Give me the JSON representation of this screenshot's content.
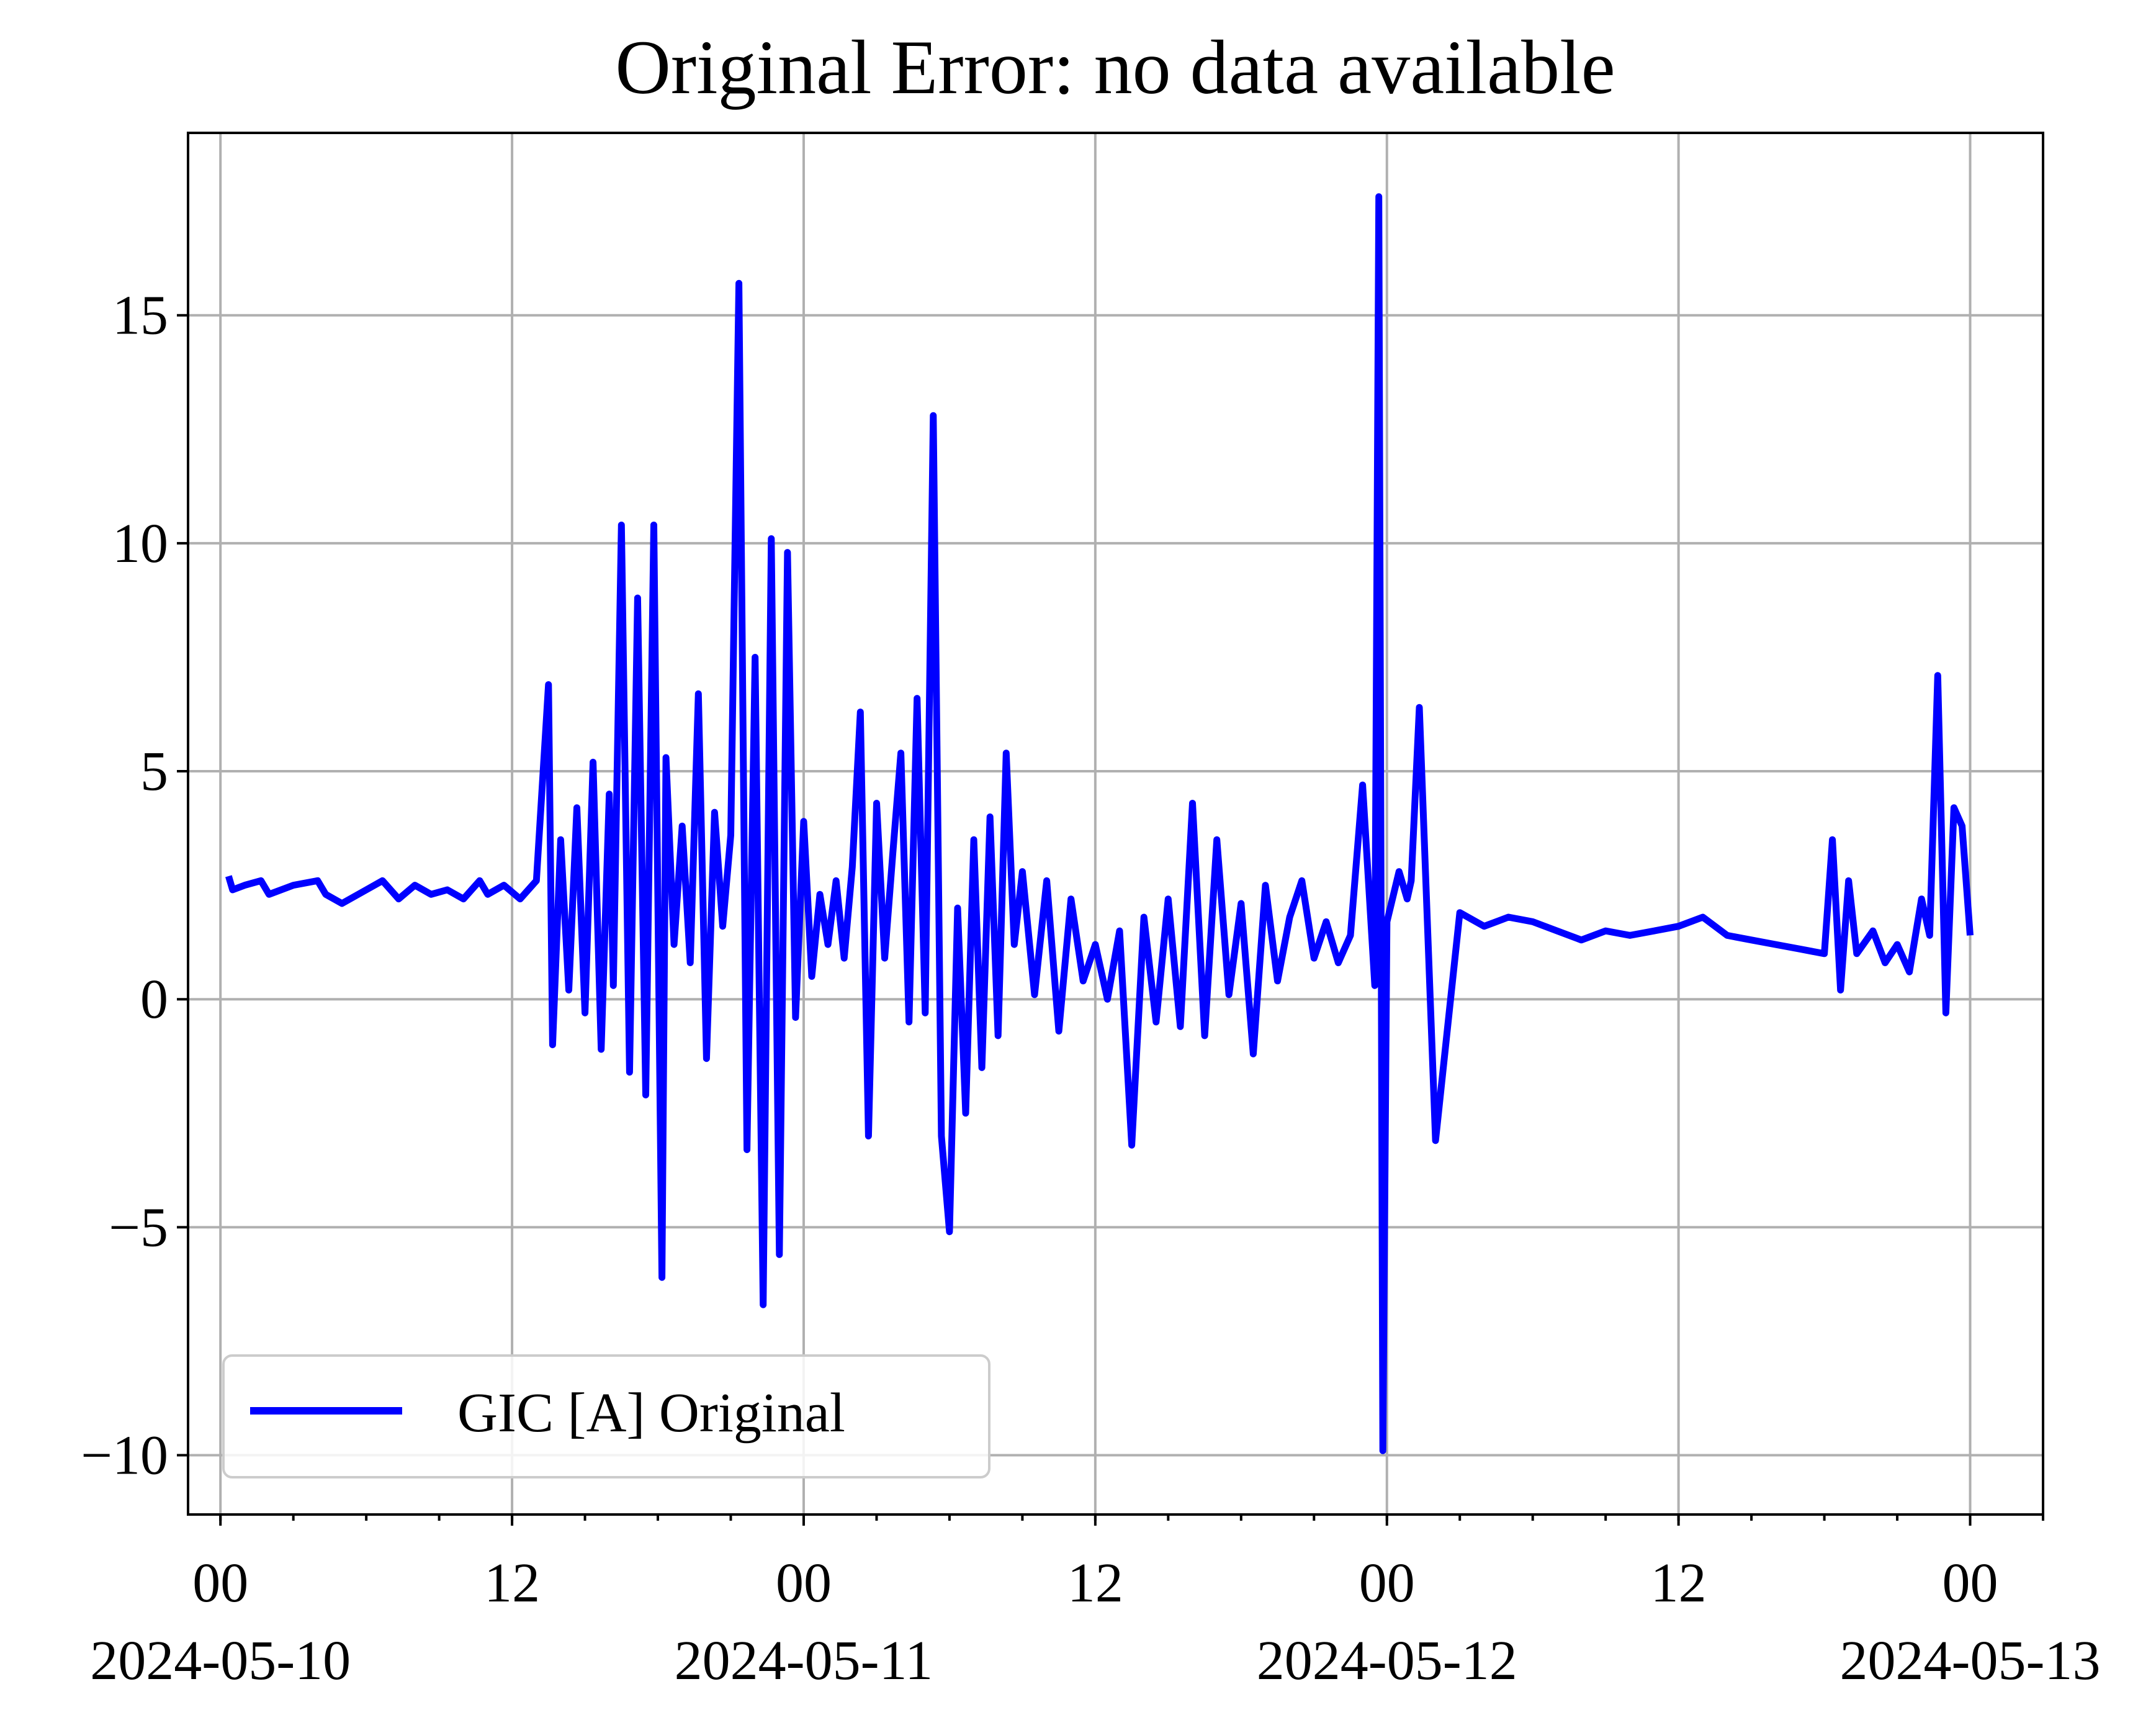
{
  "chart_data": {
    "type": "line",
    "title": "Original Error: no data available",
    "xlabel": "",
    "ylabel": "",
    "x_axis_type": "datetime",
    "xlim": [
      "2024-05-09 22:40",
      "2024-05-13 03:00"
    ],
    "ylim": [
      -11.3,
      19.0
    ],
    "grid": true,
    "legend_position": "lower left",
    "yticks": [
      -10,
      -5,
      0,
      5,
      10,
      15
    ],
    "ytick_labels": [
      "−10",
      "−5",
      "0",
      "5",
      "10",
      "15"
    ],
    "xticks": [
      "2024-05-10 00:00",
      "2024-05-10 12:00",
      "2024-05-11 00:00",
      "2024-05-11 12:00",
      "2024-05-12 00:00",
      "2024-05-12 12:00",
      "2024-05-13 00:00"
    ],
    "xtick_labels": [
      {
        "time": "00",
        "date": "2024-05-10"
      },
      {
        "time": "12",
        "date": ""
      },
      {
        "time": "00",
        "date": "2024-05-11"
      },
      {
        "time": "12",
        "date": ""
      },
      {
        "time": "00",
        "date": "2024-05-12"
      },
      {
        "time": "12",
        "date": ""
      },
      {
        "time": "00",
        "date": "2024-05-13"
      }
    ],
    "series": [
      {
        "name": "GIC [A] Original",
        "color": "#0000ff",
        "x": [
          "2024-05-10 00:20",
          "2024-05-10 00:30",
          "2024-05-10 01:00",
          "2024-05-10 01:40",
          "2024-05-10 02:00",
          "2024-05-10 03:00",
          "2024-05-10 04:00",
          "2024-05-10 04:20",
          "2024-05-10 05:00",
          "2024-05-10 06:00",
          "2024-05-10 06:40",
          "2024-05-10 07:20",
          "2024-05-10 08:00",
          "2024-05-10 08:40",
          "2024-05-10 09:20",
          "2024-05-10 10:00",
          "2024-05-10 10:40",
          "2024-05-10 11:00",
          "2024-05-10 11:40",
          "2024-05-10 12:20",
          "2024-05-10 13:00",
          "2024-05-10 13:30",
          "2024-05-10 13:40",
          "2024-05-10 14:00",
          "2024-05-10 14:20",
          "2024-05-10 14:40",
          "2024-05-10 15:00",
          "2024-05-10 15:20",
          "2024-05-10 15:40",
          "2024-05-10 16:00",
          "2024-05-10 16:10",
          "2024-05-10 16:30",
          "2024-05-10 16:50",
          "2024-05-10 17:10",
          "2024-05-10 17:30",
          "2024-05-10 17:50",
          "2024-05-10 18:10",
          "2024-05-10 18:20",
          "2024-05-10 18:40",
          "2024-05-10 19:00",
          "2024-05-10 19:20",
          "2024-05-10 19:40",
          "2024-05-10 20:00",
          "2024-05-10 20:20",
          "2024-05-10 20:40",
          "2024-05-10 21:00",
          "2024-05-10 21:20",
          "2024-05-10 21:40",
          "2024-05-10 22:00",
          "2024-05-10 22:20",
          "2024-05-10 22:40",
          "2024-05-10 23:00",
          "2024-05-10 23:20",
          "2024-05-10 23:40",
          "2024-05-11 00:00",
          "2024-05-11 00:20",
          "2024-05-11 00:40",
          "2024-05-11 01:00",
          "2024-05-11 01:20",
          "2024-05-11 01:40",
          "2024-05-11 02:00",
          "2024-05-11 02:20",
          "2024-05-11 02:40",
          "2024-05-11 03:00",
          "2024-05-11 03:20",
          "2024-05-11 03:40",
          "2024-05-11 04:00",
          "2024-05-11 04:20",
          "2024-05-11 04:40",
          "2024-05-11 05:00",
          "2024-05-11 05:20",
          "2024-05-11 05:40",
          "2024-05-11 06:00",
          "2024-05-11 06:20",
          "2024-05-11 06:40",
          "2024-05-11 07:00",
          "2024-05-11 07:20",
          "2024-05-11 07:40",
          "2024-05-11 08:00",
          "2024-05-11 08:20",
          "2024-05-11 08:40",
          "2024-05-11 09:00",
          "2024-05-11 09:30",
          "2024-05-11 10:00",
          "2024-05-11 10:30",
          "2024-05-11 11:00",
          "2024-05-11 11:30",
          "2024-05-11 12:00",
          "2024-05-11 12:30",
          "2024-05-11 13:00",
          "2024-05-11 13:30",
          "2024-05-11 14:00",
          "2024-05-11 14:30",
          "2024-05-11 15:00",
          "2024-05-11 15:30",
          "2024-05-11 16:00",
          "2024-05-11 16:30",
          "2024-05-11 17:00",
          "2024-05-11 17:30",
          "2024-05-11 18:00",
          "2024-05-11 18:30",
          "2024-05-11 19:00",
          "2024-05-11 19:30",
          "2024-05-11 20:00",
          "2024-05-11 20:30",
          "2024-05-11 21:00",
          "2024-05-11 21:30",
          "2024-05-11 22:00",
          "2024-05-11 22:30",
          "2024-05-11 23:00",
          "2024-05-11 23:30",
          "2024-05-11 23:40",
          "2024-05-11 23:50",
          "2024-05-12 00:00",
          "2024-05-12 00:30",
          "2024-05-12 00:50",
          "2024-05-12 01:00",
          "2024-05-12 01:20",
          "2024-05-12 02:00",
          "2024-05-12 03:00",
          "2024-05-12 04:00",
          "2024-05-12 05:00",
          "2024-05-12 06:00",
          "2024-05-12 07:00",
          "2024-05-12 08:00",
          "2024-05-12 09:00",
          "2024-05-12 10:00",
          "2024-05-12 11:00",
          "2024-05-12 12:00",
          "2024-05-12 13:00",
          "2024-05-12 14:00",
          "2024-05-12 15:00",
          "2024-05-12 16:00",
          "2024-05-12 17:00",
          "2024-05-12 18:00",
          "2024-05-12 18:20",
          "2024-05-12 18:40",
          "2024-05-12 19:00",
          "2024-05-12 19:20",
          "2024-05-12 20:00",
          "2024-05-12 20:30",
          "2024-05-12 21:00",
          "2024-05-12 21:30",
          "2024-05-12 22:00",
          "2024-05-12 22:20",
          "2024-05-12 22:40",
          "2024-05-12 23:00",
          "2024-05-12 23:20",
          "2024-05-12 23:40",
          "2024-05-13 00:00"
        ],
        "y": [
          2.7,
          2.4,
          2.5,
          2.6,
          2.3,
          2.5,
          2.6,
          2.3,
          2.1,
          2.4,
          2.6,
          2.2,
          2.5,
          2.3,
          2.4,
          2.2,
          2.6,
          2.3,
          2.5,
          2.2,
          2.6,
          6.9,
          -1.0,
          3.5,
          0.2,
          4.2,
          -0.3,
          5.2,
          -1.1,
          4.5,
          0.3,
          10.4,
          -1.6,
          8.8,
          -2.1,
          10.4,
          -6.1,
          5.3,
          1.2,
          3.8,
          0.8,
          6.7,
          -1.3,
          4.1,
          1.6,
          3.6,
          15.7,
          -3.3,
          7.5,
          -6.7,
          10.1,
          -5.6,
          9.8,
          -0.4,
          3.9,
          0.5,
          2.3,
          1.2,
          2.6,
          0.9,
          2.9,
          6.3,
          -3.0,
          4.3,
          0.9,
          3.2,
          5.4,
          -0.5,
          6.6,
          -0.3,
          12.8,
          -3.0,
          -5.1,
          2.0,
          -2.5,
          3.5,
          -1.5,
          4.0,
          -0.8,
          5.4,
          1.2,
          2.8,
          0.1,
          2.6,
          -0.7,
          2.2,
          0.4,
          1.2,
          0.0,
          1.5,
          -3.2,
          1.8,
          -0.5,
          2.2,
          -0.6,
          4.3,
          -0.8,
          3.5,
          0.1,
          2.1,
          -1.2,
          2.5,
          0.4,
          1.8,
          2.6,
          0.9,
          1.7,
          0.8,
          1.4,
          4.7,
          0.3,
          17.6,
          -9.9,
          1.7,
          2.8,
          2.2,
          2.6,
          6.4,
          -3.1,
          1.9,
          1.6,
          1.8,
          1.7,
          1.5,
          1.3,
          1.5,
          1.4,
          1.5,
          1.6,
          1.8,
          1.4,
          1.3,
          1.2,
          1.1,
          1.0,
          3.5,
          0.2,
          2.6,
          1.0,
          1.5,
          0.8,
          1.2,
          0.6,
          2.2,
          1.4,
          7.1,
          -0.3,
          4.2,
          3.8,
          1.4
        ]
      }
    ]
  }
}
